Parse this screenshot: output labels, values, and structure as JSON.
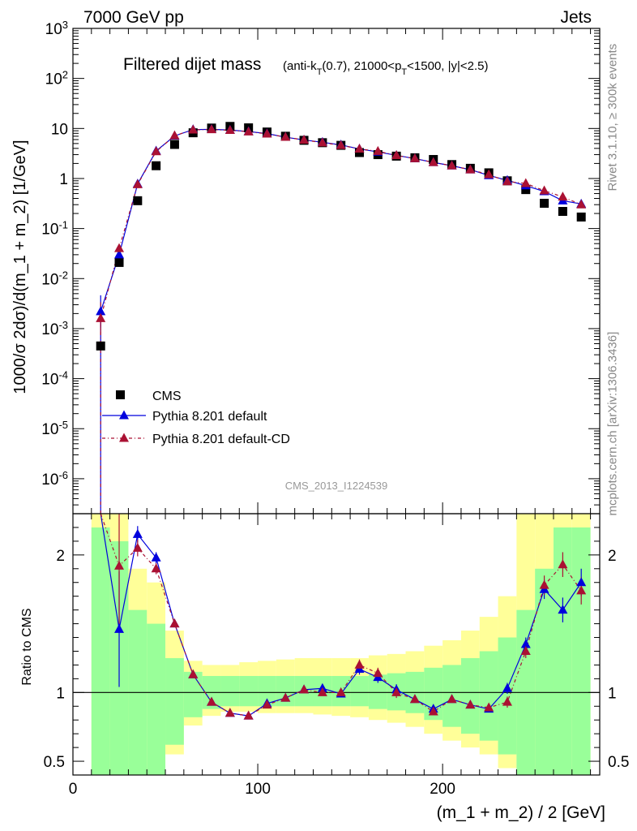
{
  "header": {
    "left": "7000 GeV pp",
    "right": "Jets"
  },
  "side": {
    "version": "Rivet 3.1.10, ≥ 300k events",
    "source": "mcplots.cern.ch [arXiv:1306.3436]"
  },
  "analysis_id": "CMS_2013_I1224539",
  "colors": {
    "cms": "#000000",
    "pythia_default": "#0000dd",
    "pythia_cd": "#aa1133",
    "band_inner": "#99ff99",
    "band_outer": "#ffff99"
  },
  "chart_data": [
    {
      "type": "scatter",
      "panel": "main",
      "title": "Filtered dijet mass",
      "subtitle": "(anti-k_T(0.7), 21000<p_T<1500, |y|<2.5)",
      "ylabel": "1000/σ 2dσ)/d(m_1 + m_2) [1/GeV]",
      "yscale": "log",
      "ylim": [
        2e-07,
        1000
      ],
      "xlim": [
        0,
        285
      ],
      "y_ticks": [
        "10^-6",
        "10^-5",
        "10^-4",
        "10^-3",
        "10^-2",
        "10^-1",
        "1",
        "10",
        "10^2",
        "10^3"
      ],
      "legend": [
        "CMS",
        "Pythia 8.201 default",
        "Pythia 8.201 default-CD"
      ],
      "legend_position": "bottom-left",
      "x": [
        15,
        25,
        35,
        45,
        55,
        65,
        75,
        85,
        95,
        105,
        115,
        125,
        135,
        145,
        155,
        165,
        175,
        185,
        195,
        205,
        215,
        225,
        235,
        245,
        255,
        265,
        275
      ],
      "series": [
        {
          "name": "CMS",
          "values": [
            0.00045,
            0.021,
            0.36,
            1.8,
            4.8,
            8.2,
            10.2,
            11.0,
            10.3,
            8.5,
            7.0,
            5.8,
            5.2,
            4.6,
            3.3,
            3.0,
            2.8,
            2.6,
            2.4,
            1.9,
            1.6,
            1.3,
            0.9,
            0.6,
            0.32,
            0.22,
            0.17
          ]
        },
        {
          "name": "Pythia 8.201 default",
          "values": [
            0.0022,
            0.03,
            0.78,
            3.55,
            7.1,
            9.5,
            9.6,
            9.3,
            8.7,
            7.9,
            6.7,
            5.9,
            5.3,
            4.7,
            3.9,
            3.4,
            2.9,
            2.5,
            2.1,
            1.8,
            1.5,
            1.15,
            0.92,
            0.72,
            0.55,
            0.36,
            0.31
          ]
        },
        {
          "name": "Pythia 8.201 default-CD",
          "values": [
            0.0016,
            0.04,
            0.76,
            3.45,
            7.2,
            9.4,
            9.5,
            9.2,
            8.6,
            7.8,
            6.7,
            5.9,
            5.2,
            4.6,
            3.9,
            3.5,
            2.9,
            2.5,
            2.1,
            1.8,
            1.5,
            1.2,
            0.87,
            0.8,
            0.57,
            0.43,
            0.3
          ]
        }
      ]
    },
    {
      "type": "line",
      "panel": "ratio",
      "ylabel": "Ratio to CMS",
      "xlabel": "(m_1 + m_2) / 2 [GeV]",
      "ylim": [
        0.4,
        2.3
      ],
      "xlim": [
        0,
        285
      ],
      "x_ticks": [
        "0",
        "100",
        "200"
      ],
      "y_ticks": [
        "0.5",
        "1",
        "2"
      ],
      "x": [
        15,
        25,
        35,
        45,
        55,
        65,
        75,
        85,
        95,
        105,
        115,
        125,
        135,
        145,
        155,
        165,
        175,
        185,
        195,
        205,
        215,
        225,
        235,
        245,
        255,
        265,
        275
      ],
      "series": [
        {
          "name": "Pythia 8.201 default",
          "values": [
            3.2,
            1.46,
            2.15,
            1.98,
            1.5,
            1.13,
            0.93,
            0.85,
            0.83,
            0.92,
            0.96,
            1.02,
            1.03,
            0.99,
            1.17,
            1.11,
            1.02,
            0.95,
            0.88,
            0.95,
            0.91,
            0.88,
            1.03,
            1.35,
            1.75,
            1.6,
            1.8
          ]
        },
        {
          "name": "Pythia 8.201 default-CD",
          "values": [
            3.5,
            1.92,
            2.05,
            1.9,
            1.5,
            1.13,
            0.93,
            0.85,
            0.83,
            0.91,
            0.96,
            1.02,
            1.0,
            1.0,
            1.2,
            1.14,
            1.0,
            0.95,
            0.86,
            0.95,
            0.91,
            0.89,
            0.93,
            1.3,
            1.78,
            1.93,
            1.74
          ]
        }
      ],
      "uncertainty_bands": {
        "x_edges": [
          10,
          20,
          30,
          40,
          50,
          60,
          70,
          80,
          90,
          100,
          110,
          120,
          130,
          140,
          150,
          160,
          170,
          180,
          190,
          200,
          210,
          220,
          230,
          240,
          250,
          260,
          270,
          280
        ],
        "inner_low": [
          0.35,
          0.35,
          0.35,
          0.35,
          0.62,
          0.82,
          0.88,
          0.9,
          0.9,
          0.9,
          0.9,
          0.9,
          0.9,
          0.9,
          0.9,
          0.88,
          0.87,
          0.85,
          0.8,
          0.75,
          0.7,
          0.65,
          0.55,
          0.4,
          0.35,
          0.35,
          0.35
        ],
        "inner_high": [
          2.2,
          2.1,
          1.6,
          1.5,
          1.25,
          1.15,
          1.12,
          1.12,
          1.12,
          1.12,
          1.12,
          1.12,
          1.12,
          1.12,
          1.12,
          1.13,
          1.14,
          1.15,
          1.18,
          1.2,
          1.25,
          1.3,
          1.4,
          1.6,
          1.9,
          2.2,
          2.2
        ],
        "outer_low": [
          0.35,
          0.35,
          0.35,
          0.35,
          0.55,
          0.76,
          0.83,
          0.86,
          0.86,
          0.85,
          0.85,
          0.85,
          0.84,
          0.83,
          0.82,
          0.8,
          0.78,
          0.75,
          0.7,
          0.65,
          0.6,
          0.55,
          0.45,
          0.35,
          0.35,
          0.35,
          0.35
        ],
        "outer_high": [
          2.3,
          2.3,
          1.9,
          1.8,
          1.45,
          1.23,
          1.2,
          1.2,
          1.22,
          1.23,
          1.24,
          1.25,
          1.25,
          1.25,
          1.25,
          1.27,
          1.28,
          1.3,
          1.34,
          1.38,
          1.45,
          1.55,
          1.7,
          2.3,
          2.3,
          2.3,
          2.3
        ]
      }
    }
  ]
}
